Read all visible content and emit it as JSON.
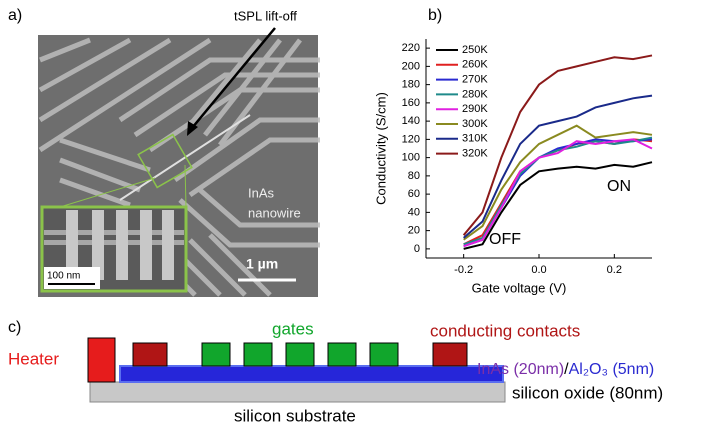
{
  "panels": [
    "a)",
    "b)",
    "c)"
  ],
  "panel_a": {
    "annotation": "tSPL lift-off",
    "nanowire_label": [
      "InAs",
      "nanowire"
    ],
    "scale_bar": "1 µm",
    "inset_scale_bar": "100 nm"
  },
  "chart_data": {
    "type": "line",
    "xlabel": "Gate voltage (V)",
    "ylabel": "Conductivity (S/cm)",
    "x": [
      -0.2,
      -0.15,
      -0.1,
      -0.05,
      0,
      0.05,
      0.1,
      0.15,
      0.2,
      0.25,
      0.3
    ],
    "xlim": [
      -0.3,
      0.3
    ],
    "ylim": [
      -10,
      230
    ],
    "xticks": [
      -0.2,
      {
        "value": 0,
        "label": "0.0"
      },
      0.2
    ],
    "yticks": [
      0,
      20,
      40,
      60,
      80,
      100,
      120,
      140,
      160,
      180,
      200,
      220
    ],
    "annotations": [
      "ON",
      "OFF"
    ],
    "series": [
      {
        "name": "250K",
        "color": "#000000",
        "values": [
          0,
          5,
          40,
          70,
          85,
          88,
          90,
          88,
          92,
          90,
          95
        ]
      },
      {
        "name": "260K",
        "color": "#e02020",
        "values": [
          5,
          15,
          50,
          85,
          100,
          108,
          115,
          118,
          115,
          120,
          118
        ]
      },
      {
        "name": "270K",
        "color": "#2a2ad0",
        "values": [
          3,
          10,
          45,
          80,
          100,
          110,
          115,
          120,
          118,
          118,
          120
        ]
      },
      {
        "name": "280K",
        "color": "#1f8a8a",
        "values": [
          5,
          12,
          48,
          82,
          100,
          108,
          112,
          118,
          115,
          118,
          122
        ]
      },
      {
        "name": "290K",
        "color": "#e020e0",
        "values": [
          3,
          10,
          45,
          85,
          100,
          105,
          118,
          115,
          118,
          120,
          110
        ]
      },
      {
        "name": "300K",
        "color": "#8a8a20",
        "values": [
          10,
          25,
          65,
          95,
          115,
          125,
          135,
          122,
          125,
          128,
          125
        ]
      },
      {
        "name": "310K",
        "color": "#1a2a8a",
        "values": [
          12,
          30,
          75,
          115,
          135,
          140,
          145,
          155,
          160,
          165,
          168
        ]
      },
      {
        "name": "320K",
        "color": "#8b1a1a",
        "values": [
          15,
          40,
          100,
          150,
          180,
          195,
          200,
          205,
          210,
          208,
          212
        ]
      }
    ]
  },
  "panel_c": {
    "heater": "Heater",
    "gates": "gates",
    "contacts": "conducting contacts",
    "channel": "InAs (20nm)",
    "separator": "/",
    "dielectric": "Al₂O₃ (5nm)",
    "oxide": "silicon oxide (80nm)",
    "substrate": "silicon substrate"
  }
}
